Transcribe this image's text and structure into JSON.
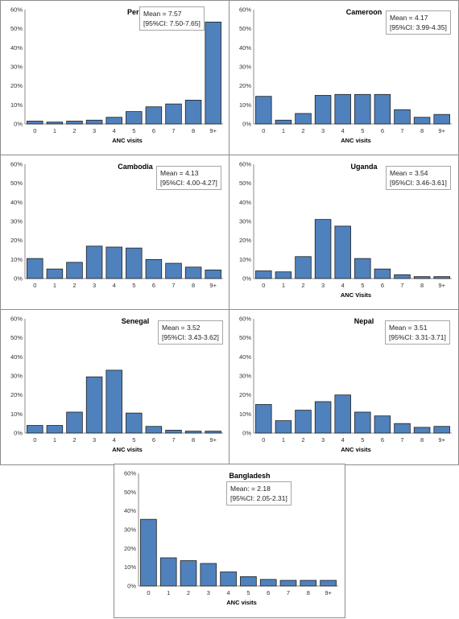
{
  "chart_data": [
    {
      "type": "bar",
      "title": "Peru",
      "mean_label": "Mean = 7.57",
      "ci_label": "[95%CI: 7.50-7.65]",
      "xlabel": "ANC visits",
      "categories": [
        "0",
        "1",
        "2",
        "3",
        "4",
        "5",
        "6",
        "7",
        "8",
        "9+"
      ],
      "values": [
        1.5,
        1,
        1.5,
        2,
        3.5,
        6.5,
        9,
        10.5,
        12.5,
        53.5
      ],
      "ylim": [
        0,
        60
      ],
      "yticks": [
        "0%",
        "10%",
        "20%",
        "30%",
        "40%",
        "50%",
        "60%"
      ],
      "bar_color": "#4f81bd"
    },
    {
      "type": "bar",
      "title": "Cameroon",
      "mean_label": "Mean = 4.17",
      "ci_label": "[95%CI: 3.99-4.35]",
      "xlabel": "ANC visits",
      "categories": [
        "0",
        "1",
        "2",
        "3",
        "4",
        "5",
        "6",
        "7",
        "8",
        "9+"
      ],
      "values": [
        14.5,
        2,
        5.5,
        15,
        15.5,
        15.5,
        15.5,
        7.5,
        3.5,
        5
      ],
      "ylim": [
        0,
        60
      ],
      "yticks": [
        "0%",
        "10%",
        "20%",
        "30%",
        "40%",
        "50%",
        "60%"
      ],
      "bar_color": "#4f81bd"
    },
    {
      "type": "bar",
      "title": "Cambodia",
      "mean_label": "Mean = 4.13",
      "ci_label": "[95%CI: 4.00-4.27]",
      "xlabel": "",
      "categories": [
        "0",
        "1",
        "2",
        "3",
        "4",
        "5",
        "6",
        "7",
        "8",
        "9+"
      ],
      "values": [
        10.5,
        5,
        8.5,
        17,
        16.5,
        16,
        10,
        8,
        6,
        4.5
      ],
      "ylim": [
        0,
        60
      ],
      "yticks": [
        "0%",
        "10%",
        "20%",
        "30%",
        "40%",
        "50%",
        "60%"
      ],
      "bar_color": "#4f81bd"
    },
    {
      "type": "bar",
      "title": "Uganda",
      "mean_label": "Mean = 3.54",
      "ci_label": "[95%CI: 3.46-3.61]",
      "xlabel": "ANC Visits",
      "categories": [
        "0",
        "1",
        "2",
        "3",
        "4",
        "5",
        "6",
        "7",
        "8",
        "9+"
      ],
      "values": [
        4,
        3.5,
        11.5,
        31,
        27.5,
        10.5,
        5,
        2,
        1,
        1
      ],
      "ylim": [
        0,
        60
      ],
      "yticks": [
        "0%",
        "10%",
        "20%",
        "30%",
        "40%",
        "50%",
        "60%"
      ],
      "bar_color": "#4f81bd"
    },
    {
      "type": "bar",
      "title": "Senegal",
      "mean_label": "Mean = 3.52",
      "ci_label": "[95%CI: 3.43-3.62]",
      "xlabel": "ANC visits",
      "categories": [
        "0",
        "1",
        "2",
        "3",
        "4",
        "5",
        "6",
        "7",
        "8",
        "9+"
      ],
      "values": [
        4,
        4,
        11,
        29.5,
        33,
        10.5,
        3.5,
        1.5,
        1,
        1
      ],
      "ylim": [
        0,
        60
      ],
      "yticks": [
        "0%",
        "10%",
        "20%",
        "30%",
        "40%",
        "50%",
        "60%"
      ],
      "bar_color": "#4f81bd"
    },
    {
      "type": "bar",
      "title": "Nepal",
      "mean_label": "Mean = 3.51",
      "ci_label": "[95%CI: 3.31-3.71]",
      "xlabel": "ANC visits",
      "categories": [
        "0",
        "1",
        "2",
        "3",
        "4",
        "5",
        "6",
        "7",
        "8",
        "9+"
      ],
      "values": [
        15,
        6.5,
        12,
        16.5,
        20,
        11,
        9,
        5,
        3,
        3.5
      ],
      "ylim": [
        0,
        60
      ],
      "yticks": [
        "0%",
        "10%",
        "20%",
        "30%",
        "40%",
        "50%",
        "60%"
      ],
      "bar_color": "#4f81bd"
    },
    {
      "type": "bar",
      "title": "Bangladesh",
      "mean_label": "Mean: = 2.18",
      "ci_label": "[95%CI: 2.05-2.31]",
      "xlabel": "ANC visits",
      "categories": [
        "0",
        "1",
        "2",
        "3",
        "4",
        "5",
        "6",
        "7",
        "8",
        "9+"
      ],
      "values": [
        35.5,
        15,
        13.5,
        12,
        7.5,
        5,
        3.5,
        3,
        3,
        3
      ],
      "ylim": [
        0,
        60
      ],
      "yticks": [
        "0%",
        "10%",
        "20%",
        "30%",
        "40%",
        "50%",
        "60%"
      ],
      "bar_color": "#4f81bd"
    }
  ]
}
